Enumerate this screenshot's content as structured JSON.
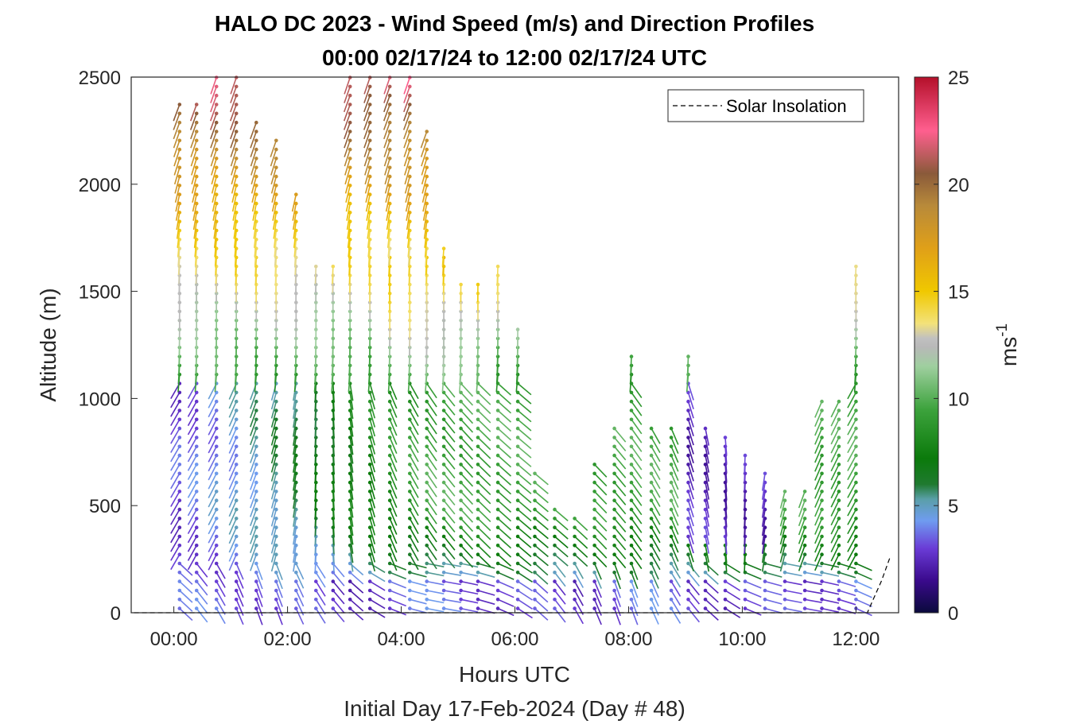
{
  "chart_data": {
    "type": "scatter",
    "title": "HALO DC 2023 - Wind Speed (m/s) and Direction Profiles",
    "subtitle": "00:00 02/17/24 to 12:00 02/17/24  UTC",
    "xlabel": "Hours UTC",
    "xlabel2": "Initial Day 17-Feb-2024 (Day # 48)",
    "ylabel": "Altitude (m)",
    "xlim": [
      -0.75,
      12.75
    ],
    "ylim": [
      0,
      2500
    ],
    "xticks": [
      0,
      2,
      4,
      6,
      8,
      10,
      12
    ],
    "xtick_labels": [
      "00:00",
      "02:00",
      "04:00",
      "06:00",
      "08:00",
      "10:00",
      "12:00"
    ],
    "yticks": [
      0,
      500,
      1000,
      1500,
      2000,
      2500
    ],
    "ytick_labels": [
      "0",
      "500",
      "1000",
      "1500",
      "2000",
      "2500"
    ],
    "grid": false,
    "legend": {
      "placement": "top-right",
      "entries": [
        "Solar Insolation"
      ]
    },
    "colorbar": {
      "label": "ms",
      "label_superscript": "-1",
      "range": [
        0,
        25
      ],
      "ticks": [
        0,
        5,
        10,
        15,
        20,
        25
      ],
      "tick_labels": [
        "0",
        "5",
        "10",
        "15",
        "20",
        "25"
      ],
      "stops": [
        {
          "v": 0,
          "c": "#0a0a3c"
        },
        {
          "v": 1.5,
          "c": "#3a0a8c"
        },
        {
          "v": 3,
          "c": "#6a3bd6"
        },
        {
          "v": 4.3,
          "c": "#6f9cf0"
        },
        {
          "v": 5.3,
          "c": "#5a9fa8"
        },
        {
          "v": 6,
          "c": "#1f7a2f"
        },
        {
          "v": 7.2,
          "c": "#0b7a0b"
        },
        {
          "v": 9.5,
          "c": "#3da33d"
        },
        {
          "v": 11.5,
          "c": "#9fcf9f"
        },
        {
          "v": 12.4,
          "c": "#b8b8b8"
        },
        {
          "v": 12.8,
          "c": "#c0c0c0"
        },
        {
          "v": 13.5,
          "c": "#f3e27a"
        },
        {
          "v": 15,
          "c": "#f0c800"
        },
        {
          "v": 17,
          "c": "#e0a018"
        },
        {
          "v": 19,
          "c": "#b88a3a"
        },
        {
          "v": 20.5,
          "c": "#8a5a3a"
        },
        {
          "v": 22.5,
          "c": "#ff5f8f"
        },
        {
          "v": 25,
          "c": "#b4102a"
        }
      ]
    },
    "solar_insolation": {
      "x": [
        -0.7,
        0,
        2,
        4,
        6,
        8,
        10,
        12.2,
        12.3,
        12.45,
        12.6
      ],
      "y": [
        0,
        0,
        0,
        0,
        0,
        0,
        0,
        0,
        60,
        150,
        260
      ]
    },
    "profiles": [
      {
        "t": 0.1,
        "top": 2400,
        "dz": 42
      },
      {
        "t": 0.4,
        "top": 2380,
        "dz": 42
      },
      {
        "t": 0.75,
        "top": 2500,
        "dz": 42
      },
      {
        "t": 1.1,
        "top": 2500,
        "dz": 42
      },
      {
        "t": 1.45,
        "top": 2300,
        "dz": 42
      },
      {
        "t": 1.8,
        "top": 2230,
        "dz": 42
      },
      {
        "t": 2.15,
        "top": 1960,
        "dz": 42
      },
      {
        "t": 2.5,
        "top": 1620,
        "dz": 42
      },
      {
        "t": 2.8,
        "top": 1620,
        "dz": 42
      },
      {
        "t": 3.1,
        "top": 2500,
        "dz": 42
      },
      {
        "t": 3.45,
        "top": 2500,
        "dz": 42
      },
      {
        "t": 3.8,
        "top": 2500,
        "dz": 42
      },
      {
        "t": 4.15,
        "top": 2500,
        "dz": 42
      },
      {
        "t": 4.45,
        "top": 2280,
        "dz": 42
      },
      {
        "t": 4.75,
        "top": 1720,
        "dz": 42
      },
      {
        "t": 5.05,
        "top": 1570,
        "dz": 42
      },
      {
        "t": 5.35,
        "top": 1560,
        "dz": 42
      },
      {
        "t": 5.7,
        "top": 1620,
        "dz": 42
      },
      {
        "t": 6.05,
        "top": 1360,
        "dz": 42
      },
      {
        "t": 6.35,
        "top": 660,
        "dz": 42
      },
      {
        "t": 6.7,
        "top": 520,
        "dz": 42
      },
      {
        "t": 7.05,
        "top": 460,
        "dz": 42
      },
      {
        "t": 7.4,
        "top": 700,
        "dz": 42
      },
      {
        "t": 7.75,
        "top": 900,
        "dz": 42
      },
      {
        "t": 8.05,
        "top": 1210,
        "dz": 42
      },
      {
        "t": 8.4,
        "top": 900,
        "dz": 42
      },
      {
        "t": 8.75,
        "top": 900,
        "dz": 42
      },
      {
        "t": 9.05,
        "top": 1210,
        "dz": 42
      },
      {
        "t": 9.35,
        "top": 860,
        "dz": 42
      },
      {
        "t": 9.7,
        "top": 820,
        "dz": 42
      },
      {
        "t": 10.05,
        "top": 770,
        "dz": 42
      },
      {
        "t": 10.4,
        "top": 650,
        "dz": 42
      },
      {
        "t": 10.75,
        "top": 580,
        "dz": 42
      },
      {
        "t": 11.1,
        "top": 580,
        "dz": 42
      },
      {
        "t": 11.4,
        "top": 1010,
        "dz": 42
      },
      {
        "t": 11.7,
        "top": 1000,
        "dz": 42
      },
      {
        "t": 12.0,
        "top": 1620,
        "dz": 42
      }
    ]
  }
}
